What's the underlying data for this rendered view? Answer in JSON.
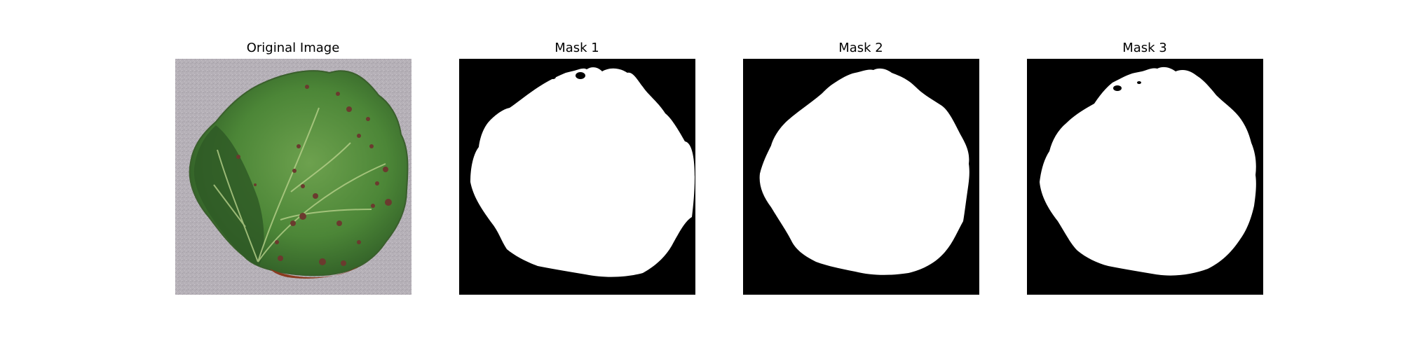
{
  "figure": {
    "panels": [
      {
        "title": "Original Image",
        "kind": "photo",
        "subject": "strawberry leaf with dark leaf-spot lesions on gray textured background"
      },
      {
        "title": "Mask 1",
        "kind": "binary-mask",
        "foreground": "#ffffff",
        "background": "#000000"
      },
      {
        "title": "Mask 2",
        "kind": "binary-mask",
        "foreground": "#ffffff",
        "background": "#000000"
      },
      {
        "title": "Mask 3",
        "kind": "binary-mask",
        "foreground": "#ffffff",
        "background": "#000000"
      }
    ]
  },
  "colors": {
    "photo_background": "#b3aeb4",
    "leaf_green": "#4f8a3a",
    "leaf_dark_green": "#2e5a24",
    "vein": "#b9d28c",
    "lesion": "#6b3a2e",
    "edge_red": "#8a3a1e",
    "mask_background": "#000000",
    "mask_foreground": "#ffffff"
  }
}
